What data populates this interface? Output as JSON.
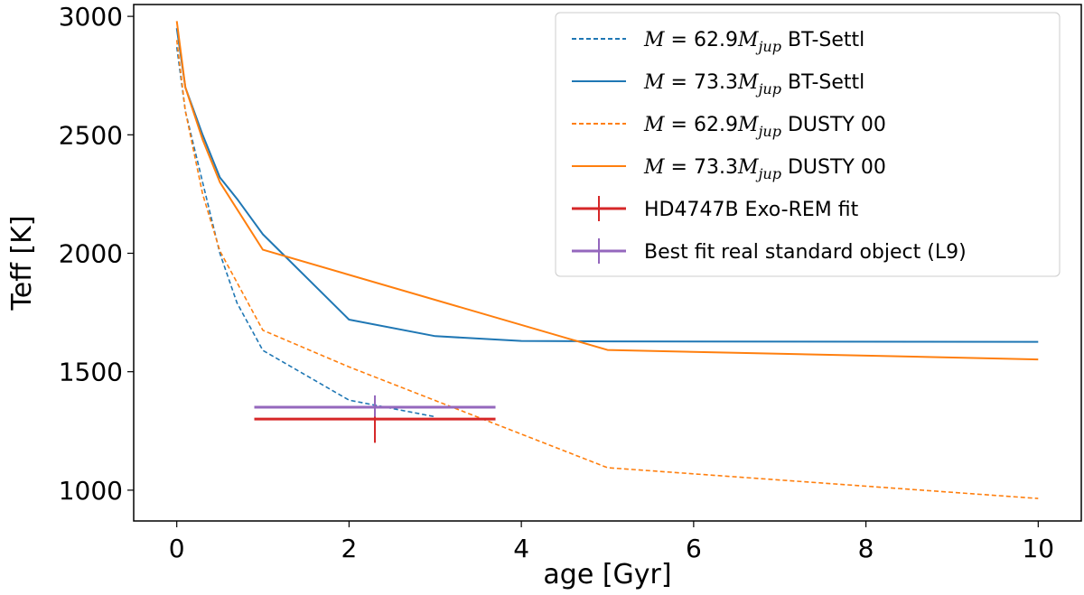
{
  "chart_data": {
    "type": "line",
    "title": "",
    "xlabel": "age [Gyr]",
    "ylabel": "Teff [K]",
    "xlim": [
      -0.5,
      10.5
    ],
    "ylim": [
      870,
      3050
    ],
    "xticks": [
      0,
      2,
      4,
      6,
      8,
      10
    ],
    "yticks": [
      1000,
      1500,
      2000,
      2500,
      3000
    ],
    "grid": false,
    "legend_position": "top-right",
    "series": [
      {
        "name": "M = 62.9Mjup BT-Settl",
        "legend": {
          "prefix": "M = 62.9M",
          "sub": "jup",
          "suffix": " BT-Settl"
        },
        "color": "#1f77b4",
        "dash": true,
        "x": [
          0,
          0.1,
          0.3,
          0.5,
          0.7,
          1.0,
          2.0,
          3.0
        ],
        "y": [
          2870,
          2600,
          2300,
          2000,
          1790,
          1590,
          1380,
          1310
        ]
      },
      {
        "name": "M = 73.3Mjup BT-Settl",
        "legend": {
          "prefix": "M = 73.3M",
          "sub": "jup",
          "suffix": " BT-Settl"
        },
        "color": "#1f77b4",
        "dash": false,
        "x": [
          0,
          0.1,
          0.3,
          0.5,
          0.7,
          1.0,
          2.0,
          3.0,
          4.0,
          5.0,
          10.0
        ],
        "y": [
          2950,
          2700,
          2500,
          2320,
          2230,
          2080,
          1720,
          1650,
          1630,
          1628,
          1626
        ]
      },
      {
        "name": "M = 62.9Mjup DUSTY 00",
        "legend": {
          "prefix": "M = 62.9M",
          "sub": "jup",
          "suffix": " DUSTY 00"
        },
        "color": "#ff7f0e",
        "dash": true,
        "x": [
          0,
          0.1,
          0.3,
          0.5,
          1.0,
          2.0,
          5.0,
          10.0
        ],
        "y": [
          2900,
          2600,
          2250,
          2010,
          1675,
          1520,
          1095,
          965
        ]
      },
      {
        "name": "M = 73.3Mjup DUSTY 00",
        "legend": {
          "prefix": "M = 73.3M",
          "sub": "jup",
          "suffix": " DUSTY 00"
        },
        "color": "#ff7f0e",
        "dash": false,
        "x": [
          0,
          0.1,
          0.3,
          0.5,
          1.0,
          5.0,
          10.0
        ],
        "y": [
          2980,
          2700,
          2480,
          2300,
          2015,
          1592,
          1552
        ]
      }
    ],
    "points": [
      {
        "name": "HD4747B Exo-REM fit",
        "color": "#d62728",
        "x": 2.3,
        "y": 1300,
        "xerr": [
          0.9,
          3.7
        ],
        "yerr": [
          1200,
          1380
        ]
      },
      {
        "name": "Best fit real standard object (L9)",
        "color": "#9467bd",
        "x": 2.3,
        "y": 1350,
        "xerr": [
          0.9,
          3.7
        ],
        "yerr": [
          1310,
          1400
        ]
      }
    ]
  }
}
